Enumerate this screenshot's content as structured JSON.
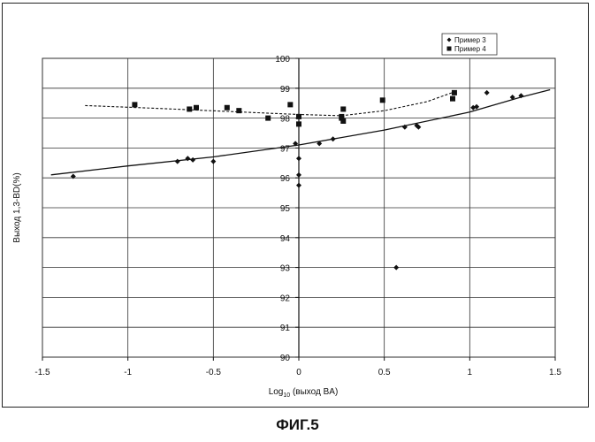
{
  "figure_caption": "ФИГ.5",
  "chart_data": {
    "type": "scatter",
    "xlabel": "Log",
    "xlabel_sub": "10",
    "xlabel_rest": " (выход BA)",
    "ylabel": "Выход 1,3-BD(%)",
    "xlim": [
      -1.5,
      1.5
    ],
    "ylim": [
      90,
      100
    ],
    "x_ticks": [
      -1.5,
      -1,
      -0.5,
      0,
      0.5,
      1,
      1.5
    ],
    "x_tick_labels": [
      "-1.5",
      "-1",
      "-0.5",
      "0",
      "0.5",
      "1",
      "1.5"
    ],
    "y_ticks": [
      90,
      91,
      92,
      93,
      94,
      95,
      96,
      97,
      98,
      99,
      100
    ],
    "y_tick_labels": [
      "90",
      "91",
      "92",
      "93",
      "94",
      "95",
      "96",
      "97",
      "98",
      "99",
      "100"
    ],
    "grid": true,
    "legend_position": "top-right",
    "series": [
      {
        "name": "Пример 3",
        "marker": "diamond",
        "color": "#111111",
        "trend": "solid",
        "points": [
          [
            -1.32,
            96.05
          ],
          [
            -0.71,
            96.55
          ],
          [
            -0.65,
            96.65
          ],
          [
            -0.62,
            96.6
          ],
          [
            -0.5,
            96.55
          ],
          [
            -0.02,
            97.15
          ],
          [
            0.0,
            96.65
          ],
          [
            0.0,
            96.1
          ],
          [
            0.0,
            95.75
          ],
          [
            0.12,
            97.15
          ],
          [
            0.2,
            97.3
          ],
          [
            0.62,
            97.7
          ],
          [
            0.69,
            97.75
          ],
          [
            0.7,
            97.7
          ],
          [
            1.02,
            98.35
          ],
          [
            1.04,
            98.38
          ],
          [
            1.1,
            98.85
          ],
          [
            1.25,
            98.7
          ],
          [
            1.3,
            98.75
          ],
          [
            0.57,
            93.0
          ]
        ]
      },
      {
        "name": "Пример 4",
        "marker": "square",
        "color": "#111111",
        "trend": "dashed",
        "points": [
          [
            -0.96,
            98.45
          ],
          [
            -0.64,
            98.3
          ],
          [
            -0.6,
            98.35
          ],
          [
            -0.42,
            98.35
          ],
          [
            -0.35,
            98.25
          ],
          [
            -0.18,
            98.0
          ],
          [
            -0.05,
            98.45
          ],
          [
            0.0,
            98.05
          ],
          [
            0.0,
            97.8
          ],
          [
            0.25,
            98.05
          ],
          [
            0.25,
            98.0
          ],
          [
            0.26,
            97.9
          ],
          [
            0.26,
            98.3
          ],
          [
            0.49,
            98.6
          ],
          [
            0.9,
            98.65
          ],
          [
            0.91,
            98.85
          ]
        ]
      }
    ],
    "trendlines": [
      {
        "series": "Пример 3",
        "style": "solid",
        "points": [
          [
            -1.45,
            96.1
          ],
          [
            -1.0,
            96.4
          ],
          [
            -0.5,
            96.7
          ],
          [
            0.0,
            97.1
          ],
          [
            0.5,
            97.6
          ],
          [
            1.0,
            98.2
          ],
          [
            1.3,
            98.7
          ],
          [
            1.47,
            98.95
          ]
        ]
      },
      {
        "series": "Пример 4",
        "style": "dashed",
        "points": [
          [
            -1.25,
            98.42
          ],
          [
            -0.8,
            98.32
          ],
          [
            -0.4,
            98.22
          ],
          [
            0.0,
            98.12
          ],
          [
            0.25,
            98.08
          ],
          [
            0.5,
            98.25
          ],
          [
            0.75,
            98.55
          ],
          [
            0.92,
            98.9
          ]
        ]
      }
    ]
  }
}
